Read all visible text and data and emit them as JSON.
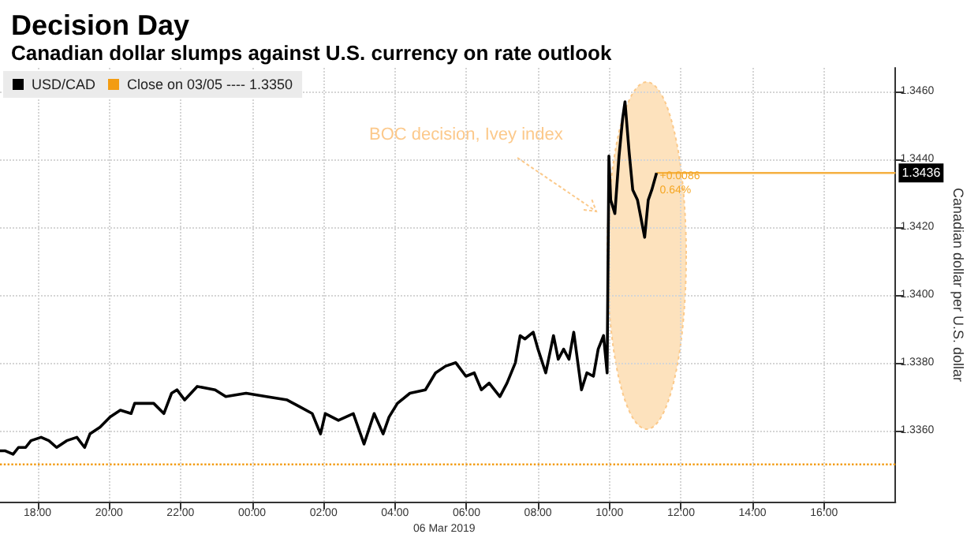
{
  "chart_data": {
    "type": "line",
    "title": "Decision Day",
    "subtitle": "Canadian dollar slumps against U.S. currency on rate outlook",
    "ylabel": "Canadian dollar per U.S. dollar",
    "series": [
      {
        "name": "USD/CAD",
        "color": "#000000",
        "x": [
          "2019-03-05T16:57",
          "2019-03-05T17:06",
          "2019-03-05T17:19",
          "2019-03-05T17:28",
          "2019-03-05T17:40",
          "2019-03-05T17:49",
          "2019-03-05T18:06",
          "2019-03-05T18:19",
          "2019-03-05T18:32",
          "2019-03-05T18:49",
          "2019-03-05T19:06",
          "2019-03-05T19:19",
          "2019-03-05T19:28",
          "2019-03-05T19:45",
          "2019-03-05T20:02",
          "2019-03-05T20:19",
          "2019-03-05T20:37",
          "2019-03-05T20:43",
          "2019-03-05T21:15",
          "2019-03-05T21:32",
          "2019-03-05T21:45",
          "2019-03-05T21:54",
          "2019-03-05T22:07",
          "2019-03-05T22:28",
          "2019-03-05T22:58",
          "2019-03-05T23:16",
          "2019-03-05T23:50",
          "2019-03-06T00:24",
          "2019-03-06T00:59",
          "2019-03-06T01:20",
          "2019-03-06T01:41",
          "2019-03-06T01:55",
          "2019-03-06T02:03",
          "2019-03-06T02:25",
          "2019-03-06T02:50",
          "2019-03-06T03:08",
          "2019-03-06T03:25",
          "2019-03-06T03:40",
          "2019-03-06T03:50",
          "2019-03-06T04:04",
          "2019-03-06T04:25",
          "2019-03-06T04:51",
          "2019-03-06T05:08",
          "2019-03-06T05:25",
          "2019-03-06T05:42",
          "2019-03-06T05:59",
          "2019-03-06T06:13",
          "2019-03-06T06:25",
          "2019-03-06T06:38",
          "2019-03-06T06:56",
          "2019-03-06T07:08",
          "2019-03-06T07:22",
          "2019-03-06T07:30",
          "2019-03-06T07:38",
          "2019-03-06T07:52",
          "2019-03-06T08:00",
          "2019-03-06T08:13",
          "2019-03-06T08:26",
          "2019-03-06T08:34",
          "2019-03-06T08:43",
          "2019-03-06T08:52",
          "2019-03-06T09:00",
          "2019-03-06T09:13",
          "2019-03-06T09:22",
          "2019-03-06T09:33",
          "2019-03-06T09:41",
          "2019-03-06T09:50",
          "2019-03-06T09:56",
          "2019-03-06T09:59",
          "2019-03-06T10:02",
          "2019-03-06T10:09",
          "2019-03-06T10:16",
          "2019-03-06T10:22",
          "2019-03-06T10:26",
          "2019-03-06T10:33",
          "2019-03-06T10:39",
          "2019-03-06T10:47",
          "2019-03-06T10:59",
          "2019-03-06T11:05",
          "2019-03-06T11:11",
          "2019-03-06T11:19"
        ],
        "values": [
          1.3354,
          1.3354,
          1.3353,
          1.3355,
          1.3355,
          1.3357,
          1.3358,
          1.3357,
          1.3355,
          1.3357,
          1.3358,
          1.3355,
          1.3359,
          1.3361,
          1.3364,
          1.3366,
          1.3365,
          1.3368,
          1.3368,
          1.3365,
          1.3371,
          1.3372,
          1.3369,
          1.3373,
          1.3372,
          1.337,
          1.3371,
          1.337,
          1.3369,
          1.3367,
          1.3365,
          1.3359,
          1.3365,
          1.3363,
          1.3365,
          1.3356,
          1.3365,
          1.3359,
          1.3364,
          1.3368,
          1.3371,
          1.3372,
          1.3377,
          1.3379,
          1.338,
          1.3376,
          1.3377,
          1.3372,
          1.3374,
          1.337,
          1.3374,
          1.338,
          1.3388,
          1.3387,
          1.3389,
          1.3384,
          1.3377,
          1.3388,
          1.3381,
          1.3384,
          1.3381,
          1.3389,
          1.3372,
          1.3377,
          1.3376,
          1.3384,
          1.3388,
          1.3377,
          1.3441,
          1.3428,
          1.3424,
          1.3441,
          1.3452,
          1.3457,
          1.3442,
          1.3431,
          1.3428,
          1.3417,
          1.3428,
          1.3431,
          1.3436
        ]
      }
    ],
    "ref_lines": [
      {
        "axis": "y",
        "value": 1.335,
        "label": "Close on 03/05 ---- 1.3350",
        "color": "#f39c12",
        "line_style": "dotted"
      },
      {
        "axis": "y",
        "value": 1.3436,
        "label": "1.3436",
        "color": "#f5b041",
        "line_style": "solid"
      }
    ],
    "annotations": [
      "BOC decision, Ivey index",
      {
        "text": "+0.0086",
        "x": "2019-03-06T11:19",
        "y": 1.3436
      },
      {
        "text": "0.64%",
        "x": "2019-03-06T11:19",
        "y": 1.3436
      },
      "06 Mar 2019"
    ],
    "xlim": [
      "2019-03-05T16:57",
      "2019-03-06T18:00"
    ],
    "xticks": [
      {
        "value": "2019-03-05T18:00",
        "label": "18:00"
      },
      {
        "value": "2019-03-05T20:00",
        "label": "20:00"
      },
      {
        "value": "2019-03-05T22:00",
        "label": "22:00"
      },
      {
        "value": "2019-03-06T00:00",
        "label": "00:00"
      },
      {
        "value": "2019-03-06T02:00",
        "label": "02:00"
      },
      {
        "value": "2019-03-06T04:00",
        "label": "04:00"
      },
      {
        "value": "2019-03-06T06:00",
        "label": "06:00"
      },
      {
        "value": "2019-03-06T08:00",
        "label": "08:00"
      },
      {
        "value": "2019-03-06T10:00",
        "label": "10:00"
      },
      {
        "value": "2019-03-06T12:00",
        "label": "12:00"
      },
      {
        "value": "2019-03-06T14:00",
        "label": "14:00"
      },
      {
        "value": "2019-03-06T16:00",
        "label": "16:00"
      }
    ],
    "ylim": [
      1.3339,
      1.3467
    ],
    "yticks": [
      {
        "value": 1.336,
        "label": "1.3360"
      },
      {
        "value": 1.338,
        "label": "1.3380"
      },
      {
        "value": 1.34,
        "label": "1.3400"
      },
      {
        "value": 1.342,
        "label": "1.3420"
      },
      {
        "value": 1.344,
        "label": "1.3440"
      },
      {
        "value": 1.346,
        "label": "1.3460"
      }
    ],
    "grid": true,
    "legend": "top left",
    "marker": "none",
    "line_style": "solid"
  }
}
